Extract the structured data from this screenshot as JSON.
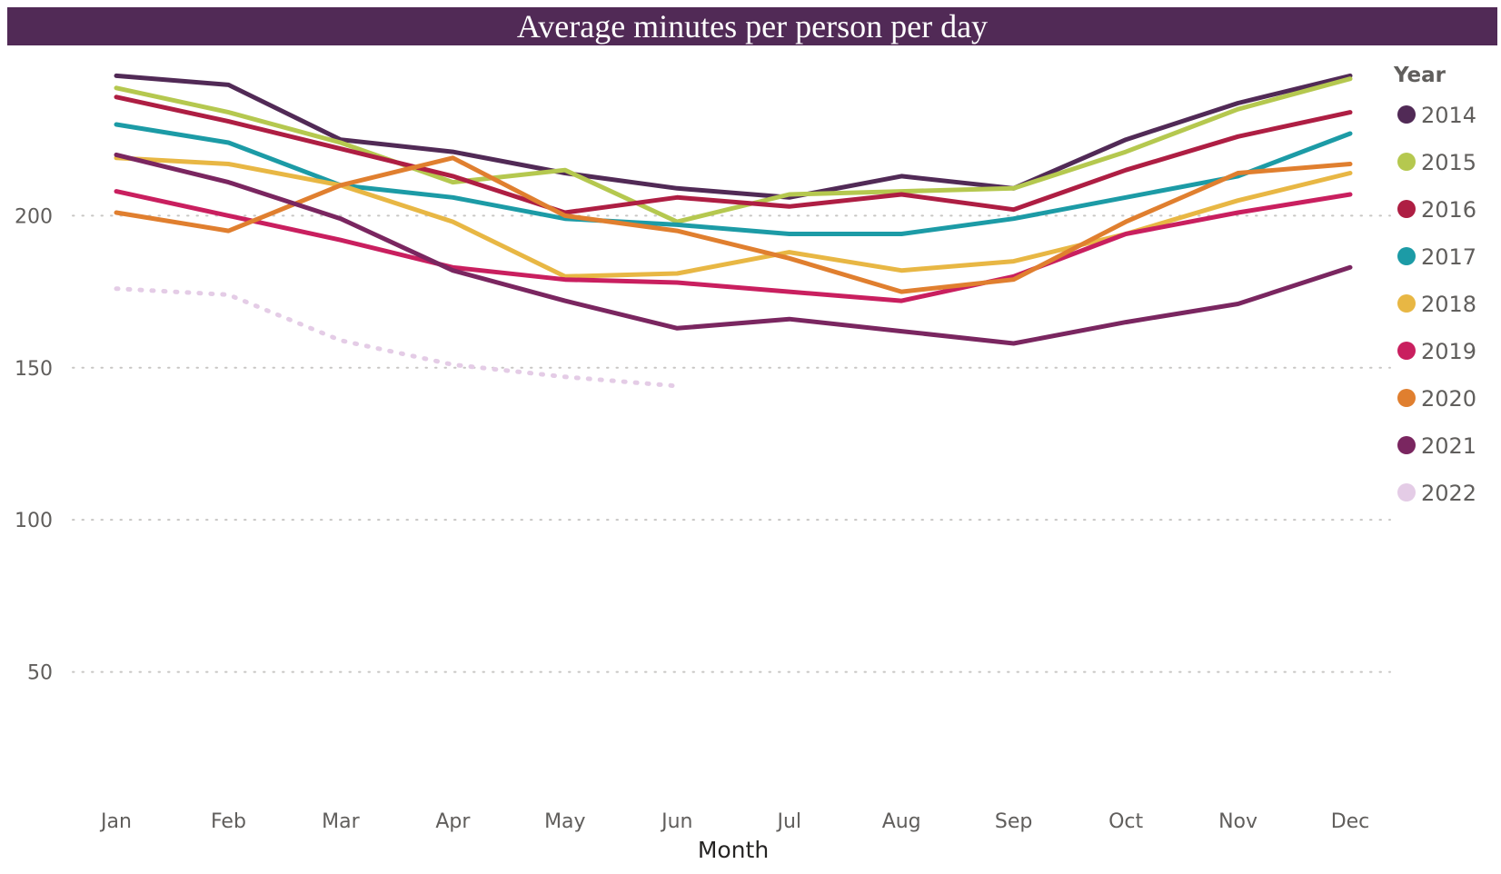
{
  "chart_data": {
    "type": "line",
    "title": "Average minutes per person per day",
    "xlabel": "Month",
    "ylabel": "",
    "categories": [
      "Jan",
      "Feb",
      "Mar",
      "Apr",
      "May",
      "Jun",
      "Jul",
      "Aug",
      "Sep",
      "Oct",
      "Nov",
      "Dec"
    ],
    "ylim": [
      20,
      250
    ],
    "yticks": [
      50,
      100,
      150,
      200
    ],
    "grid": true,
    "legend": {
      "title": "Year",
      "position": "right"
    },
    "series": [
      {
        "name": "2014",
        "color": "#512a56",
        "dashed": false,
        "values": [
          246,
          243,
          225,
          221,
          214,
          209,
          206,
          213,
          209,
          225,
          237,
          246
        ]
      },
      {
        "name": "2015",
        "color": "#b5c84f",
        "dashed": false,
        "values": [
          242,
          234,
          224,
          211,
          215,
          198,
          207,
          208,
          209,
          221,
          235,
          245
        ]
      },
      {
        "name": "2016",
        "color": "#ae1e43",
        "dashed": false,
        "values": [
          239,
          231,
          222,
          213,
          201,
          206,
          203,
          207,
          202,
          215,
          226,
          234
        ]
      },
      {
        "name": "2017",
        "color": "#1c9ba6",
        "dashed": false,
        "values": [
          230,
          224,
          210,
          206,
          199,
          197,
          194,
          194,
          199,
          206,
          213,
          227
        ]
      },
      {
        "name": "2018",
        "color": "#e8b744",
        "dashed": false,
        "values": [
          219,
          217,
          210,
          198,
          180,
          181,
          188,
          182,
          185,
          194,
          205,
          214
        ]
      },
      {
        "name": "2019",
        "color": "#c91f5f",
        "dashed": false,
        "values": [
          208,
          200,
          192,
          183,
          179,
          178,
          175,
          172,
          180,
          194,
          201,
          207
        ]
      },
      {
        "name": "2020",
        "color": "#e07f2f",
        "dashed": false,
        "values": [
          201,
          195,
          210,
          219,
          200,
          195,
          186,
          175,
          179,
          198,
          214,
          217
        ]
      },
      {
        "name": "2021",
        "color": "#7a2660",
        "dashed": false,
        "values": [
          220,
          211,
          199,
          182,
          172,
          163,
          166,
          162,
          158,
          165,
          171,
          183
        ]
      },
      {
        "name": "2022",
        "color": "#e4cce6",
        "dashed": true,
        "values": [
          176,
          174,
          159,
          151,
          147,
          144,
          null,
          null,
          null,
          null,
          null,
          null
        ]
      }
    ]
  }
}
